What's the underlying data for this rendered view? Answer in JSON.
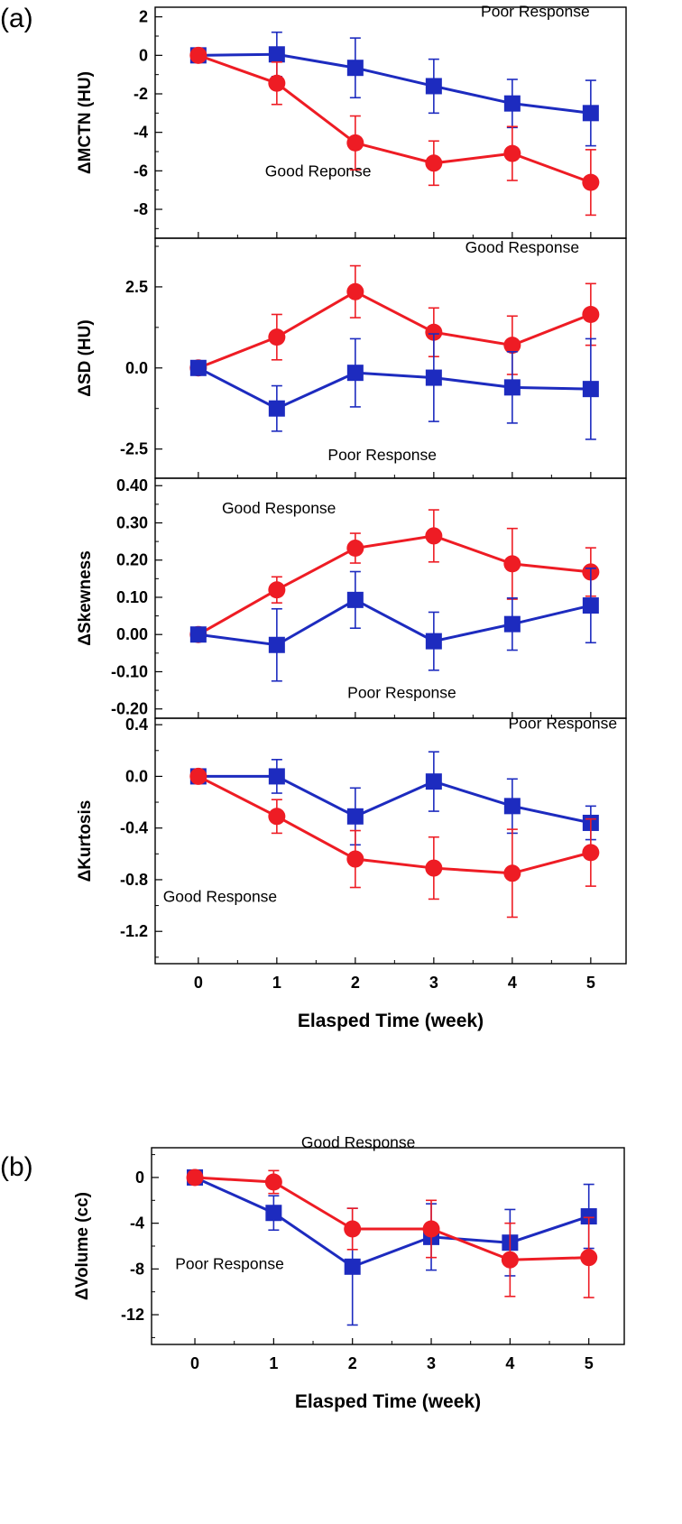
{
  "figure": {
    "panel_labels": [
      "(a)",
      "(b)"
    ]
  },
  "colors": {
    "good_response": "#ee1c24",
    "poor_response": "#1d2bbf"
  },
  "chart_data": [
    {
      "type": "line",
      "panel": "(a)",
      "ylabel": "ΔMCTN (HU)",
      "xlabel": "",
      "x": [
        0,
        1,
        2,
        3,
        4,
        5
      ],
      "xlim": [
        -0.55,
        5.45
      ],
      "ylim": [
        -9.5,
        2.5
      ],
      "yticks": [
        2,
        0,
        -2,
        -4,
        -6,
        -8
      ],
      "ytick_labels": [
        "2",
        "0",
        "-2",
        "-4",
        "-6",
        "-8"
      ],
      "series": [
        {
          "name": "Poor Response",
          "color": "#1d2bbf",
          "marker": "square",
          "values": [
            0,
            0.05,
            -0.65,
            -1.6,
            -2.5,
            -3.0
          ],
          "errors": [
            0,
            1.15,
            1.55,
            1.4,
            1.25,
            1.7
          ]
        },
        {
          "name": "Good Response",
          "color": "#ee1c24",
          "marker": "circle",
          "values": [
            0,
            -1.45,
            -4.55,
            -5.6,
            -5.1,
            -6.6
          ],
          "errors": [
            0,
            1.1,
            1.4,
            1.15,
            1.4,
            1.7
          ]
        }
      ],
      "annotations": [
        {
          "text": "Poor Response",
          "x": 3.6,
          "y": 2.0
        },
        {
          "text": "Good Reponse",
          "x": 0.85,
          "y": -6.3
        }
      ]
    },
    {
      "type": "line",
      "panel": "(a)",
      "ylabel": "ΔSD (HU)",
      "xlabel": "",
      "x": [
        0,
        1,
        2,
        3,
        4,
        5
      ],
      "xlim": [
        -0.55,
        5.45
      ],
      "ylim": [
        -3.4,
        4.0
      ],
      "yticks": [
        2.5,
        0.0,
        -2.5
      ],
      "ytick_labels": [
        "2.5",
        "0.0",
        "-2.5"
      ],
      "series": [
        {
          "name": "Good Response",
          "color": "#ee1c24",
          "marker": "circle",
          "values": [
            0,
            0.95,
            2.35,
            1.1,
            0.7,
            1.65
          ],
          "errors": [
            0,
            0.7,
            0.8,
            0.75,
            0.9,
            0.95
          ]
        },
        {
          "name": "Poor Response",
          "color": "#1d2bbf",
          "marker": "square",
          "values": [
            0,
            -1.25,
            -0.15,
            -0.3,
            -0.6,
            -0.65
          ],
          "errors": [
            0,
            0.7,
            1.05,
            1.35,
            1.1,
            1.55
          ]
        }
      ],
      "annotations": [
        {
          "text": "Good Response",
          "x": 3.4,
          "y": 3.55
        },
        {
          "text": "Poor Response",
          "x": 1.65,
          "y": -2.85
        }
      ]
    },
    {
      "type": "line",
      "panel": "(a)",
      "ylabel": "ΔSkewness",
      "xlabel": "",
      "x": [
        0,
        1,
        2,
        3,
        4,
        5
      ],
      "xlim": [
        -0.55,
        5.45
      ],
      "ylim": [
        -0.225,
        0.42
      ],
      "yticks": [
        0.4,
        0.3,
        0.2,
        0.1,
        0.0,
        -0.1,
        -0.2
      ],
      "ytick_labels": [
        "0.40",
        "0.30",
        "0.20",
        "0.10",
        "0.00",
        "-0.10",
        "-0.20"
      ],
      "series": [
        {
          "name": "Good Response",
          "color": "#ee1c24",
          "marker": "circle",
          "values": [
            0,
            0.12,
            0.232,
            0.265,
            0.19,
            0.168
          ],
          "errors": [
            0,
            0.035,
            0.04,
            0.07,
            0.095,
            0.065
          ]
        },
        {
          "name": "Poor Response",
          "color": "#1d2bbf",
          "marker": "square",
          "values": [
            0,
            -0.028,
            0.093,
            -0.018,
            0.028,
            0.078
          ],
          "errors": [
            0,
            0.097,
            0.076,
            0.078,
            0.07,
            0.1
          ]
        }
      ],
      "annotations": [
        {
          "text": "Good Response",
          "x": 0.3,
          "y": 0.325
        },
        {
          "text": "Poor Response",
          "x": 1.9,
          "y": -0.17
        }
      ]
    },
    {
      "type": "line",
      "panel": "(a)",
      "ylabel": "ΔKurtosis",
      "xlabel": "Elasped Time (week)",
      "x": [
        0,
        1,
        2,
        3,
        4,
        5
      ],
      "xlim": [
        -0.55,
        5.45
      ],
      "ylim": [
        -1.45,
        0.45
      ],
      "yticks": [
        0.4,
        0.0,
        -0.4,
        -0.8,
        -1.2
      ],
      "ytick_labels": [
        "0.4",
        "0.0",
        "-0.4",
        "-0.8",
        "-1.2"
      ],
      "xtick_labels": [
        "0",
        "1",
        "2",
        "3",
        "4",
        "5"
      ],
      "series": [
        {
          "name": "Poor Response",
          "color": "#1d2bbf",
          "marker": "square",
          "values": [
            0,
            0.0,
            -0.31,
            -0.04,
            -0.23,
            -0.36
          ],
          "errors": [
            0,
            0.13,
            0.22,
            0.23,
            0.21,
            0.13
          ]
        },
        {
          "name": "Good Response",
          "color": "#ee1c24",
          "marker": "circle",
          "values": [
            0,
            -0.31,
            -0.64,
            -0.71,
            -0.75,
            -0.59
          ],
          "errors": [
            0,
            0.13,
            0.22,
            0.24,
            0.34,
            0.26
          ]
        }
      ],
      "annotations": [
        {
          "text": "Poor Response",
          "x": 3.95,
          "y": 0.37
        },
        {
          "text": "Good Response",
          "x": -0.45,
          "y": -0.97
        }
      ]
    },
    {
      "type": "line",
      "panel": "(b)",
      "ylabel": "ΔVolume (cc)",
      "xlabel": "Elasped Time (week)",
      "x": [
        0,
        1,
        2,
        3,
        4,
        5
      ],
      "xlim": [
        -0.55,
        5.45
      ],
      "ylim": [
        -14.6,
        2.6
      ],
      "yticks": [
        0,
        -4,
        -8,
        -12
      ],
      "ytick_labels": [
        "0",
        "-4",
        "-8",
        "-12"
      ],
      "xtick_labels": [
        "0",
        "1",
        "2",
        "3",
        "4",
        "5"
      ],
      "series": [
        {
          "name": "Poor Response",
          "color": "#1d2bbf",
          "marker": "square",
          "values": [
            0,
            -3.1,
            -7.8,
            -5.2,
            -5.7,
            -3.4
          ],
          "errors": [
            0,
            1.5,
            5.1,
            2.9,
            2.9,
            2.8
          ]
        },
        {
          "name": "Good Response",
          "color": "#ee1c24",
          "marker": "circle",
          "values": [
            0,
            -0.4,
            -4.5,
            -4.5,
            -7.2,
            -7.0
          ],
          "errors": [
            0,
            1.0,
            1.8,
            2.5,
            3.2,
            3.5
          ]
        }
      ],
      "annotations": [
        {
          "text": "Good Response",
          "x": 1.35,
          "y": 2.6
        },
        {
          "text": "Poor Response",
          "x": -0.25,
          "y": -8.0
        }
      ]
    }
  ]
}
